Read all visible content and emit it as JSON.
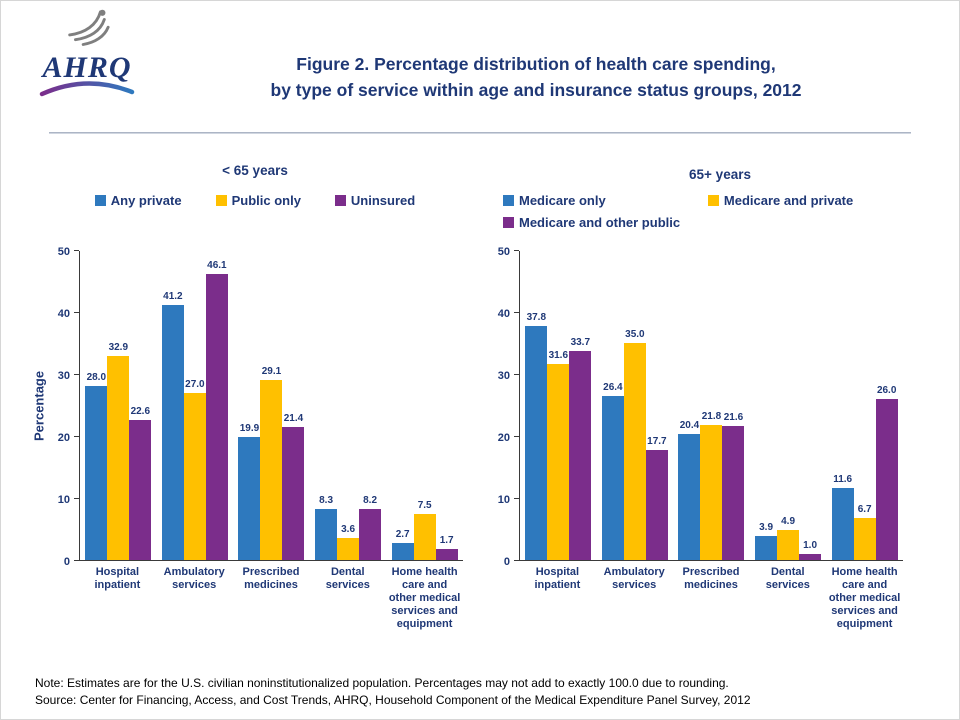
{
  "logo": {
    "text": "AHRQ"
  },
  "title": {
    "line1": "Figure 2. Percentage distribution of health care spending,",
    "line2": "by type of service within age and insurance status groups, 2012"
  },
  "notes": {
    "note": "Note: Estimates are for the U.S. civilian noninstitutionalized population. Percentages may not add to exactly 100.0 due to rounding.",
    "source": "Source: Center for Financing, Access, and Cost Trends, AHRQ, Household Component of the Medical Expenditure Panel Survey, 2012"
  },
  "colors": {
    "series_blue": "#2E79BE",
    "series_gold": "#FFC000",
    "series_purple": "#7B2D8B",
    "text_navy": "#1F3876",
    "axis": "#3a3a3a"
  },
  "chart_data": [
    {
      "type": "bar",
      "title": "< 65 years",
      "ylabel": "Percentage",
      "xlabel": "",
      "ylim": [
        0,
        50
      ],
      "yticks": [
        0,
        10,
        20,
        30,
        40,
        50
      ],
      "grid": false,
      "legend_position": "top",
      "categories": [
        "Hospital\ninpatient",
        "Ambulatory\nservices",
        "Prescribed\nmedicines",
        "Dental\nservices",
        "Home health\ncare and\nother medical\nservices and\nequipment"
      ],
      "series": [
        {
          "name": "Any private",
          "color": "#2E79BE",
          "values": [
            28.0,
            41.2,
            19.9,
            8.3,
            2.7
          ]
        },
        {
          "name": "Public only",
          "color": "#FFC000",
          "values": [
            32.9,
            27.0,
            29.1,
            3.6,
            7.5
          ]
        },
        {
          "name": "Uninsured",
          "color": "#7B2D8B",
          "values": [
            22.6,
            46.1,
            21.4,
            8.2,
            1.7
          ]
        }
      ]
    },
    {
      "type": "bar",
      "title": "65+ years",
      "ylabel": "",
      "xlabel": "",
      "ylim": [
        0,
        50
      ],
      "yticks": [
        0,
        10,
        20,
        30,
        40,
        50
      ],
      "grid": false,
      "legend_position": "top",
      "categories": [
        "Hospital\ninpatient",
        "Ambulatory\nservices",
        "Prescribed\nmedicines",
        "Dental\nservices",
        "Home health\ncare and\nother medical\nservices and\nequipment"
      ],
      "series": [
        {
          "name": "Medicare only",
          "color": "#2E79BE",
          "values": [
            37.8,
            26.4,
            20.4,
            3.9,
            11.6
          ]
        },
        {
          "name": "Medicare and private",
          "color": "#FFC000",
          "values": [
            31.6,
            35.0,
            21.8,
            4.9,
            6.7
          ]
        },
        {
          "name": "Medicare and other public",
          "color": "#7B2D8B",
          "values": [
            33.7,
            17.7,
            21.6,
            1.0,
            26.0
          ]
        }
      ]
    }
  ]
}
